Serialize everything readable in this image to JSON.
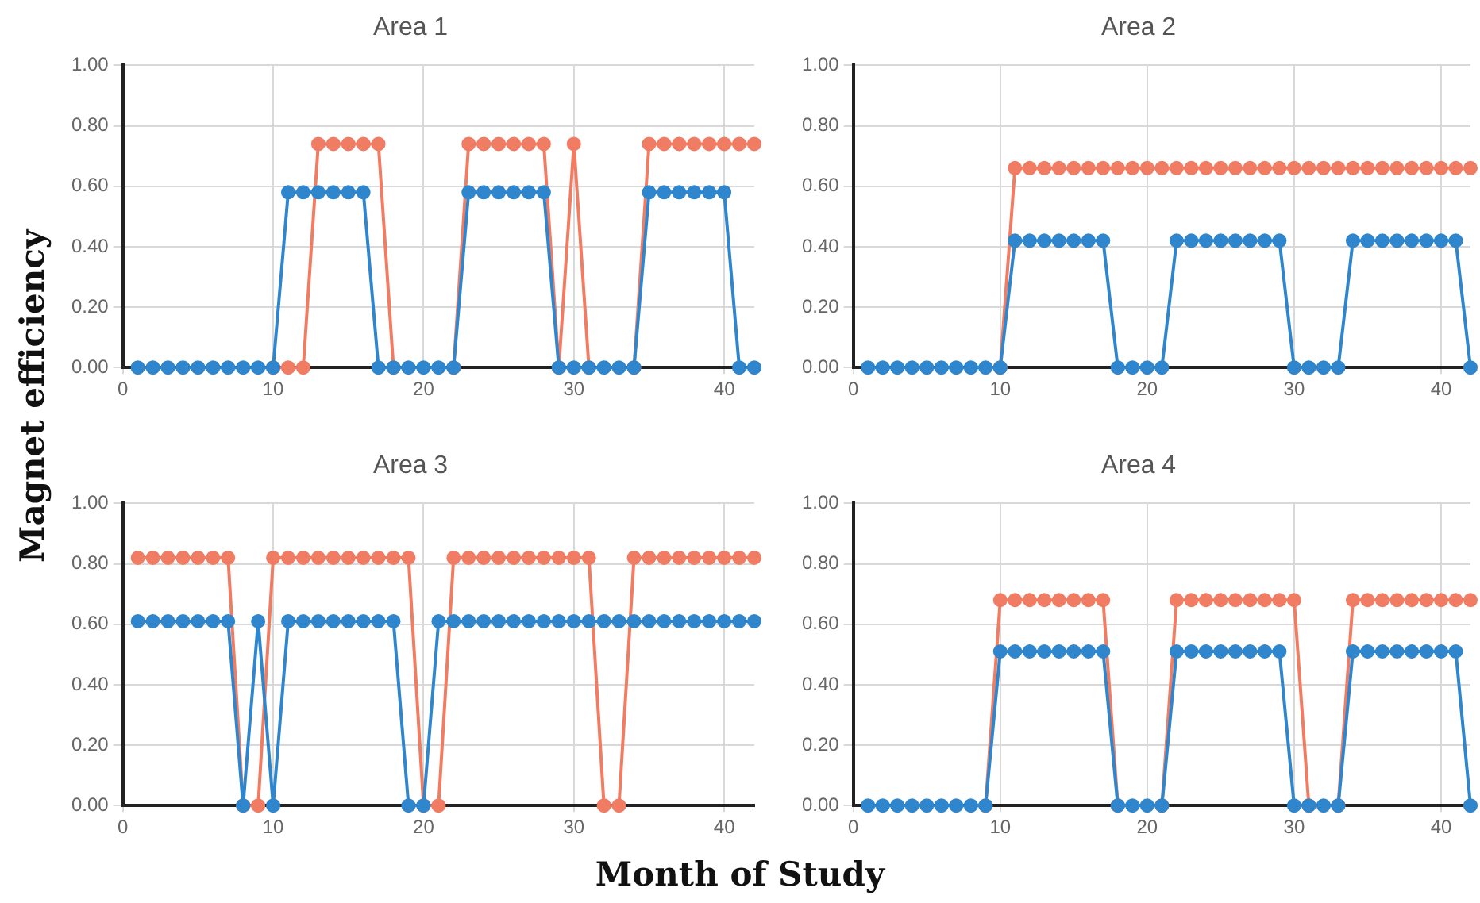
{
  "chart_data": [
    {
      "type": "line",
      "title": "Area 1",
      "ylabel": "Magnet efficiency",
      "x": [
        1,
        2,
        3,
        4,
        5,
        6,
        7,
        8,
        9,
        10,
        11,
        12,
        13,
        14,
        15,
        16,
        17,
        18,
        19,
        20,
        21,
        22,
        23,
        24,
        25,
        26,
        27,
        28,
        29,
        30,
        31,
        32,
        33,
        34,
        35,
        36,
        37,
        38,
        39,
        40,
        41,
        42
      ],
      "xlim": [
        0,
        42
      ],
      "xticks": [
        0,
        10,
        20,
        30,
        40
      ],
      "ylim": [
        0,
        1
      ],
      "yticks": [
        {
          "value": 0,
          "label": "0.00"
        },
        {
          "value": 0.2,
          "label": "0.20"
        },
        {
          "value": 0.4,
          "label": "0.40"
        },
        {
          "value": 0.6,
          "label": "0.60"
        },
        {
          "value": 0.8,
          "label": "0.80"
        },
        {
          "value": 1,
          "label": "1.00"
        }
      ],
      "grid": true,
      "marker": "circle",
      "series": [
        {
          "color": "#f07c64",
          "values": [
            null,
            null,
            null,
            null,
            null,
            null,
            null,
            null,
            null,
            0,
            0,
            0,
            0.74,
            0.74,
            0.74,
            0.74,
            0.74,
            0,
            null,
            null,
            null,
            0,
            0.74,
            0.74,
            0.74,
            0.74,
            0.74,
            0.74,
            0,
            0.74,
            0,
            null,
            null,
            0,
            0.74,
            0.74,
            0.74,
            0.74,
            0.74,
            0.74,
            0.74,
            0.74
          ]
        },
        {
          "color": "#2f86cc",
          "values": [
            0,
            0,
            0,
            0,
            0,
            0,
            0,
            0,
            0,
            0,
            0.58,
            0.58,
            0.58,
            0.58,
            0.58,
            0.58,
            0,
            0,
            0,
            0,
            0,
            0,
            0.58,
            0.58,
            0.58,
            0.58,
            0.58,
            0.58,
            0,
            0,
            0,
            0,
            0,
            0,
            0.58,
            0.58,
            0.58,
            0.58,
            0.58,
            0.58,
            0,
            0
          ]
        }
      ]
    },
    {
      "type": "line",
      "title": "Area 2",
      "x": [
        1,
        2,
        3,
        4,
        5,
        6,
        7,
        8,
        9,
        10,
        11,
        12,
        13,
        14,
        15,
        16,
        17,
        18,
        19,
        20,
        21,
        22,
        23,
        24,
        25,
        26,
        27,
        28,
        29,
        30,
        31,
        32,
        33,
        34,
        35,
        36,
        37,
        38,
        39,
        40,
        41,
        42
      ],
      "xlim": [
        0,
        42
      ],
      "xticks": [
        0,
        10,
        20,
        30,
        40
      ],
      "ylim": [
        0,
        1
      ],
      "yticks": [
        {
          "value": 0,
          "label": "0.00"
        },
        {
          "value": 0.2,
          "label": "0.20"
        },
        {
          "value": 0.4,
          "label": "0.40"
        },
        {
          "value": 0.6,
          "label": "0.60"
        },
        {
          "value": 0.8,
          "label": "0.80"
        },
        {
          "value": 1,
          "label": "1.00"
        }
      ],
      "grid": true,
      "marker": "circle",
      "series": [
        {
          "color": "#f07c64",
          "values": [
            null,
            null,
            null,
            null,
            null,
            null,
            null,
            null,
            null,
            0,
            0.66,
            0.66,
            0.66,
            0.66,
            0.66,
            0.66,
            0.66,
            0.66,
            0.66,
            0.66,
            0.66,
            0.66,
            0.66,
            0.66,
            0.66,
            0.66,
            0.66,
            0.66,
            0.66,
            0.66,
            0.66,
            0.66,
            0.66,
            0.66,
            0.66,
            0.66,
            0.66,
            0.66,
            0.66,
            0.66,
            0.66,
            0.66
          ]
        },
        {
          "color": "#2f86cc",
          "values": [
            0,
            0,
            0,
            0,
            0,
            0,
            0,
            0,
            0,
            0,
            0.42,
            0.42,
            0.42,
            0.42,
            0.42,
            0.42,
            0.42,
            0,
            0,
            0,
            0,
            0.42,
            0.42,
            0.42,
            0.42,
            0.42,
            0.42,
            0.42,
            0.42,
            0,
            0,
            0,
            0,
            0.42,
            0.42,
            0.42,
            0.42,
            0.42,
            0.42,
            0.42,
            0.42,
            0
          ]
        }
      ]
    },
    {
      "type": "line",
      "title": "Area 3",
      "xlabel": "Month of Study",
      "x": [
        1,
        2,
        3,
        4,
        5,
        6,
        7,
        8,
        9,
        10,
        11,
        12,
        13,
        14,
        15,
        16,
        17,
        18,
        19,
        20,
        21,
        22,
        23,
        24,
        25,
        26,
        27,
        28,
        29,
        30,
        31,
        32,
        33,
        34,
        35,
        36,
        37,
        38,
        39,
        40,
        41,
        42
      ],
      "xlim": [
        0,
        42
      ],
      "xticks": [
        0,
        10,
        20,
        30,
        40
      ],
      "ylim": [
        0,
        1
      ],
      "yticks": [
        {
          "value": 0,
          "label": "0.00"
        },
        {
          "value": 0.2,
          "label": "0.20"
        },
        {
          "value": 0.4,
          "label": "0.40"
        },
        {
          "value": 0.6,
          "label": "0.60"
        },
        {
          "value": 0.8,
          "label": "0.80"
        },
        {
          "value": 1,
          "label": "1.00"
        }
      ],
      "grid": true,
      "marker": "circle",
      "series": [
        {
          "color": "#f07c64",
          "values": [
            0.82,
            0.82,
            0.82,
            0.82,
            0.82,
            0.82,
            0.82,
            0,
            0,
            0.82,
            0.82,
            0.82,
            0.82,
            0.82,
            0.82,
            0.82,
            0.82,
            0.82,
            0.82,
            0,
            0,
            0.82,
            0.82,
            0.82,
            0.82,
            0.82,
            0.82,
            0.82,
            0.82,
            0.82,
            0.82,
            0,
            0,
            0.82,
            0.82,
            0.82,
            0.82,
            0.82,
            0.82,
            0.82,
            0.82,
            0.82
          ]
        },
        {
          "color": "#2f86cc",
          "values": [
            0.61,
            0.61,
            0.61,
            0.61,
            0.61,
            0.61,
            0.61,
            0,
            0.61,
            0,
            0.61,
            0.61,
            0.61,
            0.61,
            0.61,
            0.61,
            0.61,
            0.61,
            0,
            0,
            0.61,
            0.61,
            0.61,
            0.61,
            0.61,
            0.61,
            0.61,
            0.61,
            0.61,
            0.61,
            0.61,
            0.61,
            0.61,
            0.61,
            0.61,
            0.61,
            0.61,
            0.61,
            0.61,
            0.61,
            0.61,
            0.61
          ]
        }
      ]
    },
    {
      "type": "line",
      "title": "Area 4",
      "x": [
        1,
        2,
        3,
        4,
        5,
        6,
        7,
        8,
        9,
        10,
        11,
        12,
        13,
        14,
        15,
        16,
        17,
        18,
        19,
        20,
        21,
        22,
        23,
        24,
        25,
        26,
        27,
        28,
        29,
        30,
        31,
        32,
        33,
        34,
        35,
        36,
        37,
        38,
        39,
        40,
        41,
        42
      ],
      "xlim": [
        0,
        42
      ],
      "xticks": [
        0,
        10,
        20,
        30,
        40
      ],
      "ylim": [
        0,
        1
      ],
      "yticks": [
        {
          "value": 0,
          "label": "0.00"
        },
        {
          "value": 0.2,
          "label": "0.20"
        },
        {
          "value": 0.4,
          "label": "0.40"
        },
        {
          "value": 0.6,
          "label": "0.60"
        },
        {
          "value": 0.8,
          "label": "0.80"
        },
        {
          "value": 1,
          "label": "1.00"
        }
      ],
      "grid": true,
      "marker": "circle",
      "series": [
        {
          "color": "#f07c64",
          "values": [
            null,
            null,
            null,
            null,
            null,
            null,
            null,
            null,
            0,
            0.68,
            0.68,
            0.68,
            0.68,
            0.68,
            0.68,
            0.68,
            0.68,
            0,
            null,
            null,
            0,
            0.68,
            0.68,
            0.68,
            0.68,
            0.68,
            0.68,
            0.68,
            0.68,
            0.68,
            0,
            null,
            0,
            0.68,
            0.68,
            0.68,
            0.68,
            0.68,
            0.68,
            0.68,
            0.68,
            0.68
          ]
        },
        {
          "color": "#2f86cc",
          "values": [
            0,
            0,
            0,
            0,
            0,
            0,
            0,
            0,
            0,
            0.51,
            0.51,
            0.51,
            0.51,
            0.51,
            0.51,
            0.51,
            0.51,
            0,
            0,
            0,
            0,
            0.51,
            0.51,
            0.51,
            0.51,
            0.51,
            0.51,
            0.51,
            0.51,
            0,
            0,
            0,
            0,
            0.51,
            0.51,
            0.51,
            0.51,
            0.51,
            0.51,
            0.51,
            0.51,
            0
          ]
        }
      ]
    }
  ]
}
